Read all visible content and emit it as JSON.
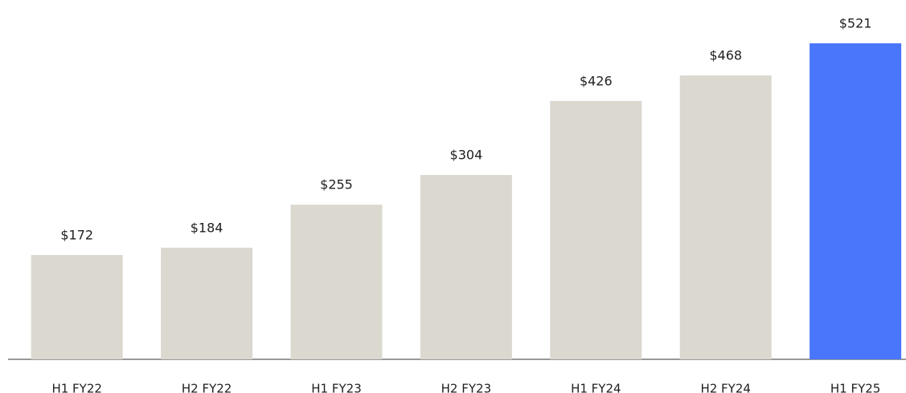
{
  "chart_data": {
    "type": "bar",
    "categories": [
      "H1 FY22",
      "H2 FY22",
      "H1 FY23",
      "H2 FY23",
      "H1 FY24",
      "H2 FY24",
      "H1 FY25"
    ],
    "values": [
      172,
      184,
      255,
      304,
      426,
      468,
      521
    ],
    "value_labels": [
      "$172",
      "$184",
      "$255",
      "$304",
      "$426",
      "$468",
      "$521"
    ],
    "colors": [
      "#dbd8d0",
      "#dbd8d0",
      "#dbd8d0",
      "#dbd8d0",
      "#dbd8d0",
      "#dbd8d0",
      "#4a76fc"
    ]
  }
}
